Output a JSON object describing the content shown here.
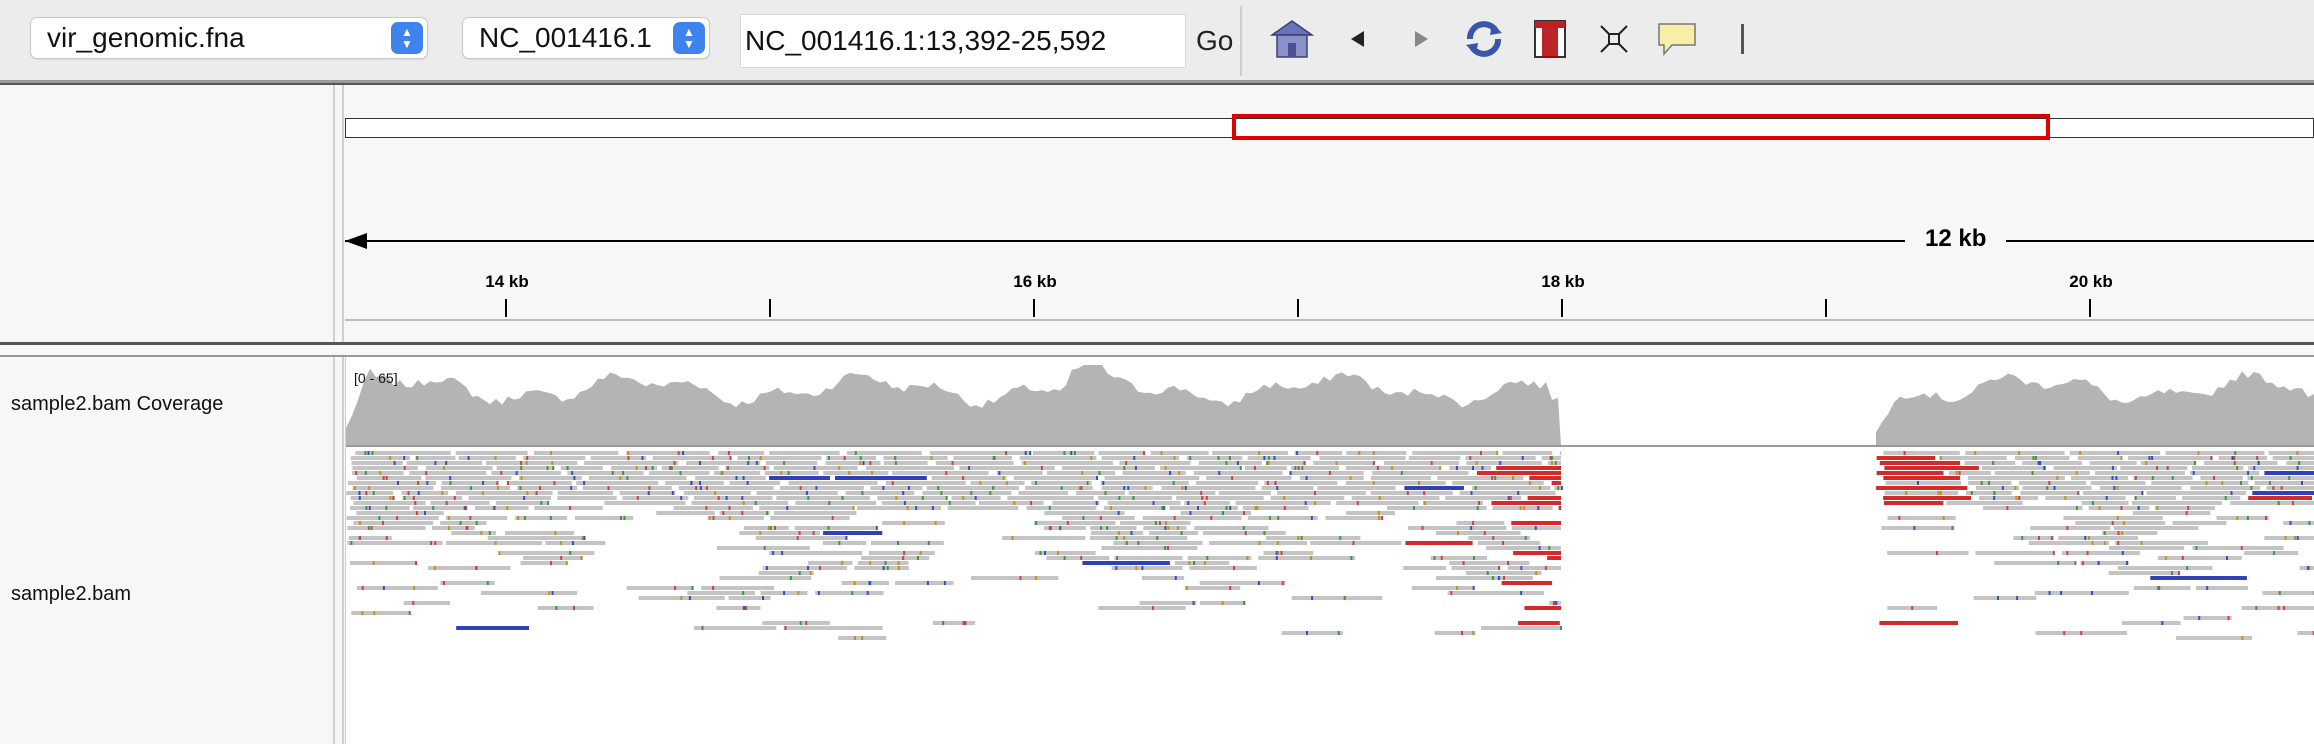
{
  "toolbar": {
    "genome_select": "vir_genomic.fna",
    "chromosome_select": "NC_001416.1",
    "locus": "NC_001416.1:13,392-25,592",
    "go_label": "Go",
    "buttons": [
      "home-icon",
      "back-icon",
      "forward-icon",
      "refresh-icon",
      "region-of-interest-icon",
      "fit-to-window-icon",
      "popup-info-icon",
      "ruler-icon"
    ]
  },
  "ruler": {
    "span_label": "12 kb",
    "ticks": [
      {
        "label": "14 kb"
      },
      {
        "label": ""
      },
      {
        "label": "16 kb"
      },
      {
        "label": ""
      },
      {
        "label": "18 kb"
      },
      {
        "label": ""
      },
      {
        "label": "20 kb"
      }
    ]
  },
  "tracks": {
    "coverage": {
      "name": "sample2.bam Coverage",
      "range": "[0 - 65]"
    },
    "alignment": {
      "name": "sample2.bam"
    }
  },
  "colors": {
    "roi": "#e00000",
    "coverage": "#b4b4b4",
    "read": "#c4c4c4",
    "insert_large": "#d42a2a",
    "insert_small": "#3040b8"
  }
}
